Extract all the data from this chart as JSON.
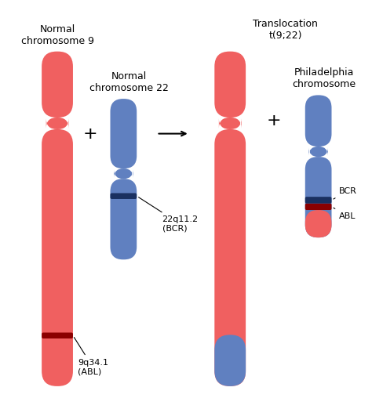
{
  "bg_color": "#ffffff",
  "red_color": "#F06060",
  "blue_color": "#6080C0",
  "dark_red": "#8B0000",
  "dark_blue": "#1a3060",
  "title_chr9": "Normal\nchromosome 9",
  "title_chr22": "Normal\nchromosome 22",
  "title_right": "Translocation\nt(9;22)",
  "title_phila": "Philadelphia\nchromosome",
  "label_bcr_orig": "22q11.2\n(BCR)",
  "label_abl_orig": "9q34.1\n(ABL)",
  "label_bcr": "BCR",
  "label_abl": "ABL",
  "plus_fontsize": 16,
  "label_fontsize": 9,
  "annot_fontsize": 8
}
